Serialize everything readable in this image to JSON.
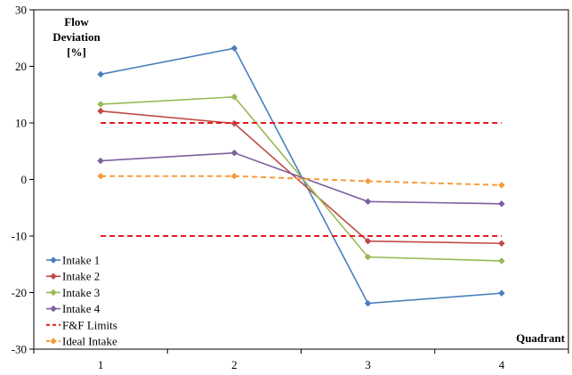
{
  "chart_data": {
    "type": "line",
    "ylabel": [
      "Flow",
      "Deviation",
      "[%]"
    ],
    "xlabel": "Quadrant",
    "categories": [
      "1",
      "2",
      "3",
      "4"
    ],
    "ylim": [
      -30,
      30
    ],
    "yticks": [
      -30,
      -20,
      -10,
      0,
      10,
      20,
      30
    ],
    "grid": false,
    "legend_position": "bottom-left",
    "series": [
      {
        "name": "Intake 1",
        "values": [
          18.6,
          23.2,
          -21.9,
          -20.1
        ],
        "color": "#4a7ebb",
        "dash": false,
        "marker": "diamond"
      },
      {
        "name": "Intake 2",
        "values": [
          12.1,
          9.9,
          -10.9,
          -11.3
        ],
        "color": "#be4b48",
        "dash": false,
        "marker": "diamond"
      },
      {
        "name": "Intake 3",
        "values": [
          13.3,
          14.6,
          -13.7,
          -14.4
        ],
        "color": "#98b954",
        "dash": false,
        "marker": "diamond"
      },
      {
        "name": "Intake 4",
        "values": [
          3.3,
          4.7,
          -3.9,
          -4.3
        ],
        "color": "#7d60a0",
        "dash": false,
        "marker": "diamond"
      },
      {
        "name": "F&F Limits",
        "values": [
          10,
          10,
          10,
          10
        ],
        "lower_values": [
          -10,
          -10,
          -10,
          -10
        ],
        "color": "#e41a1c",
        "dash": true,
        "marker": "none"
      },
      {
        "name": "Ideal Intake",
        "values": [
          0.6,
          0.6,
          -0.3,
          -1.0
        ],
        "color": "#f59d3d",
        "dash": true,
        "marker": "diamond"
      }
    ]
  }
}
